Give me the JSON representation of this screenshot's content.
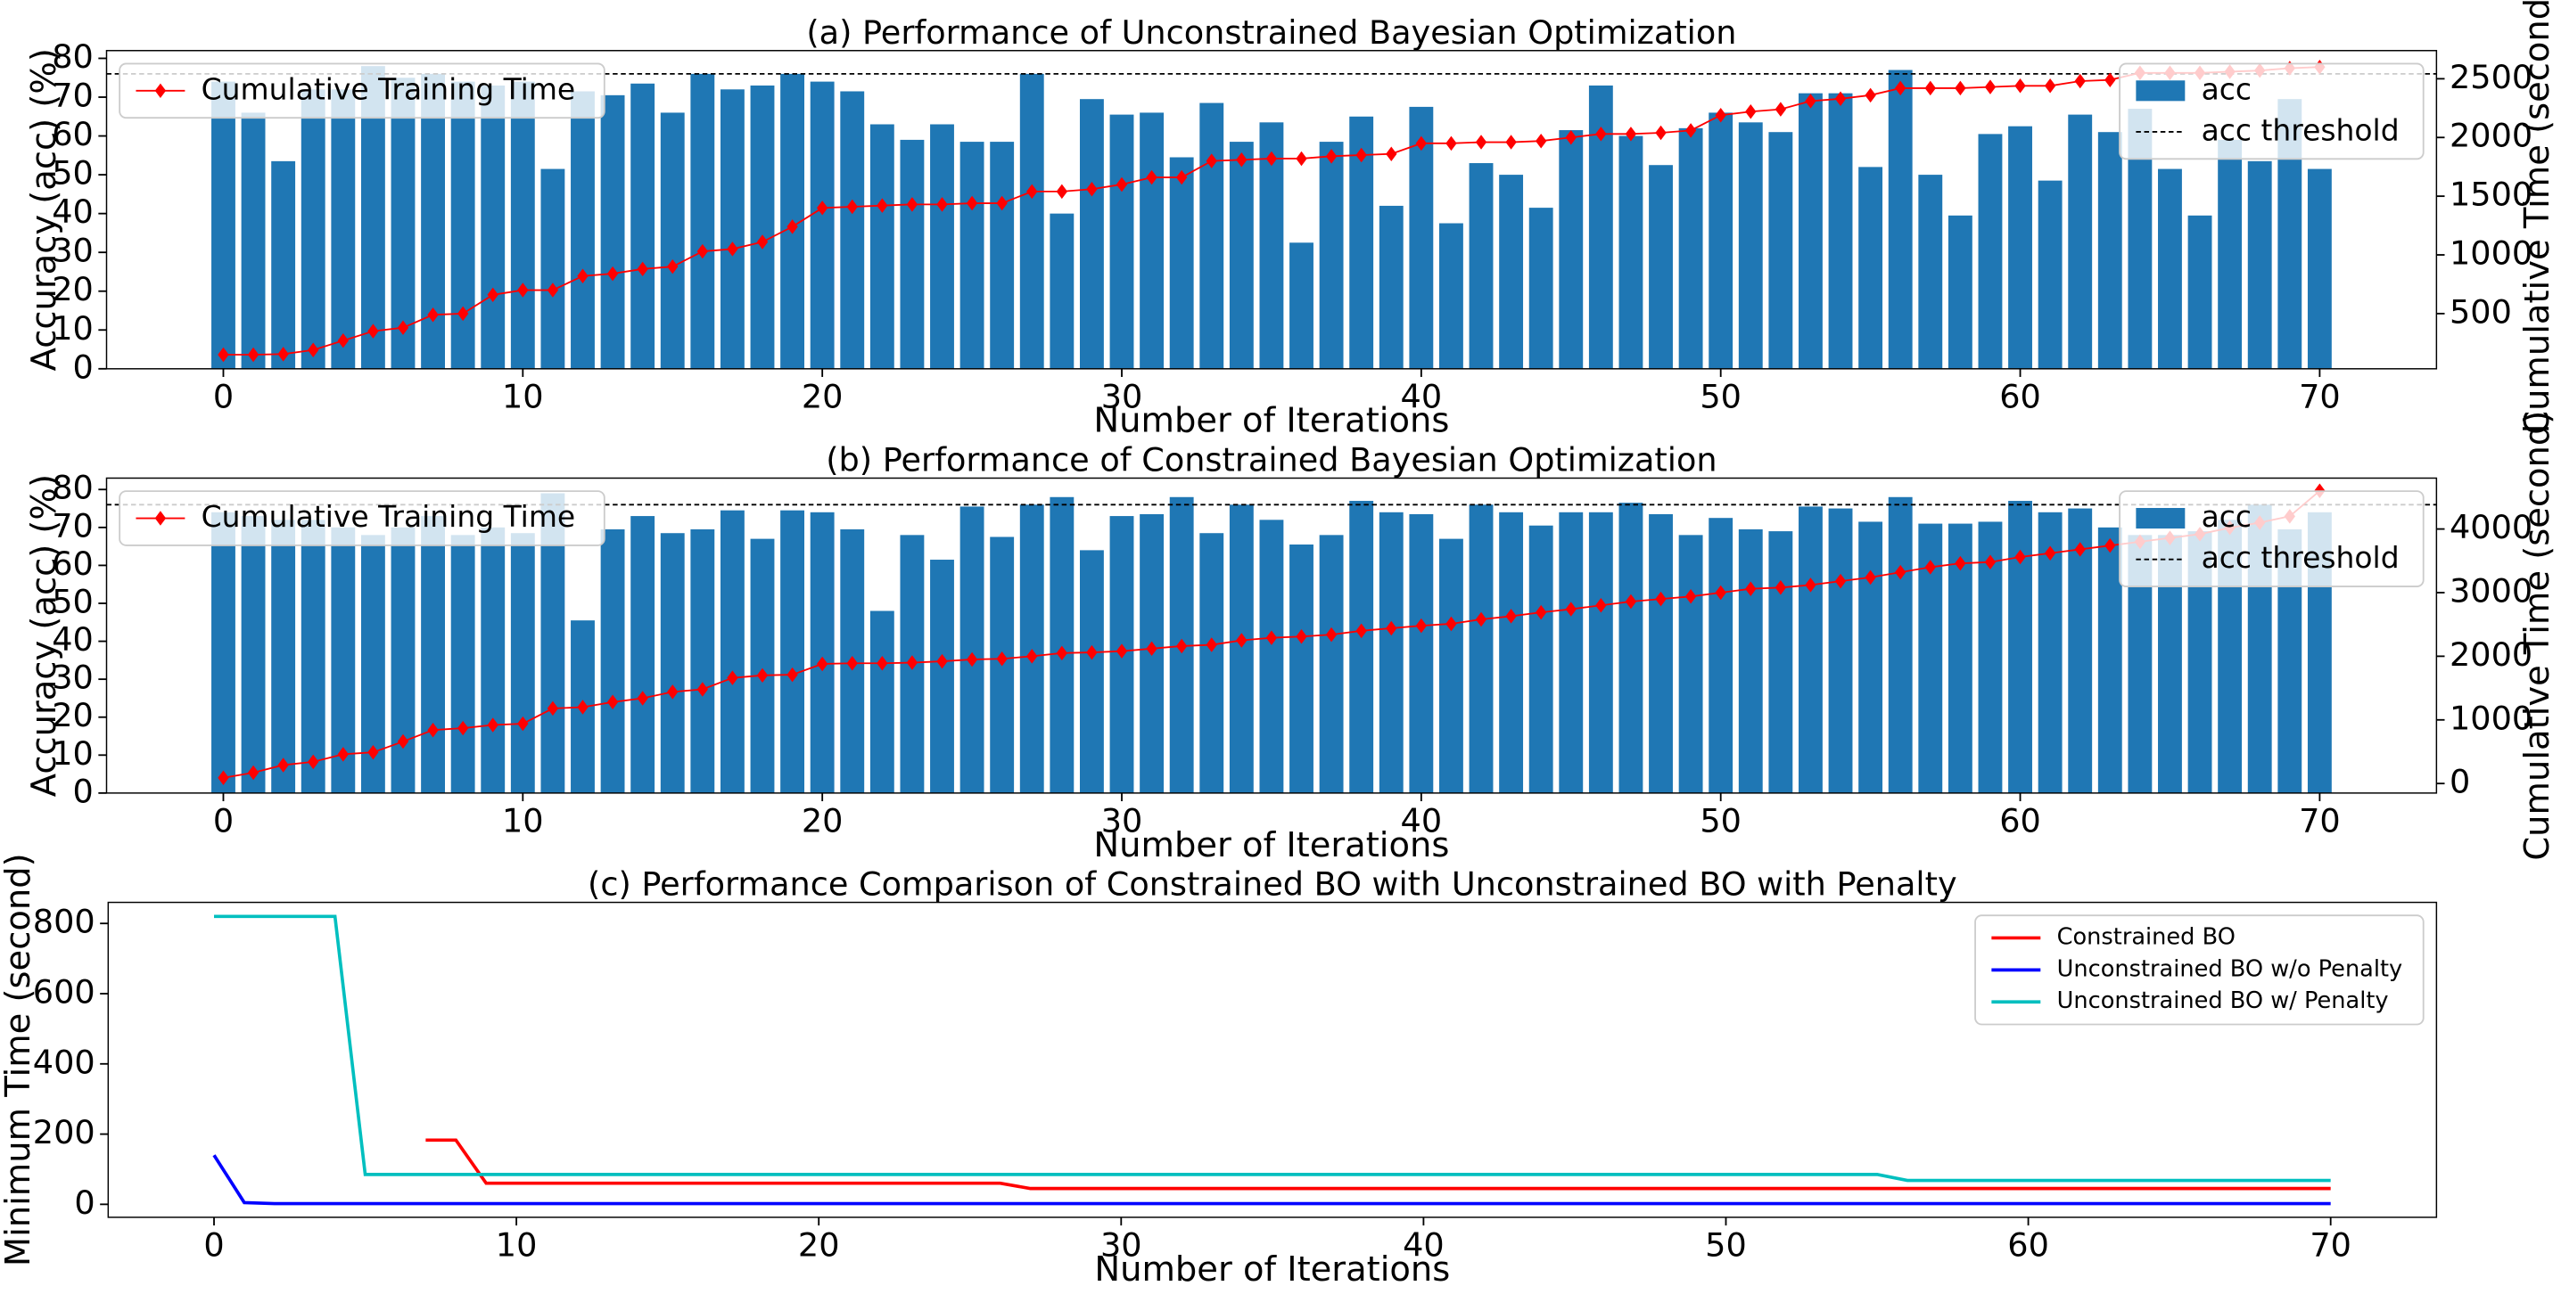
{
  "chart_data": [
    {
      "type": "bar",
      "title": "(a) Performance of Unconstrained Bayesian Optimization",
      "xlabel": "Number of Iterations",
      "ylabel": "Accuracy (acc) (%)",
      "y2label": "Cumulative Time (second)",
      "x": [
        0,
        1,
        2,
        3,
        4,
        5,
        6,
        7,
        8,
        9,
        10,
        11,
        12,
        13,
        14,
        15,
        16,
        17,
        18,
        19,
        20,
        21,
        22,
        23,
        24,
        25,
        26,
        27,
        28,
        29,
        30,
        31,
        32,
        33,
        34,
        35,
        36,
        37,
        38,
        39,
        40,
        41,
        42,
        43,
        44,
        45,
        46,
        47,
        48,
        49,
        50,
        51,
        52,
        53,
        54,
        55,
        56,
        57,
        58,
        59,
        60,
        61,
        62,
        63,
        64,
        65,
        66,
        67,
        68,
        69,
        70
      ],
      "series": [
        {
          "name": "acc",
          "color": "#1f77b4",
          "values": [
            74,
            66,
            53.5,
            72,
            72,
            78,
            75,
            76,
            74,
            73,
            74,
            51.5,
            71.5,
            70.5,
            73.5,
            66,
            76,
            72,
            73,
            76,
            74,
            71.5,
            63,
            59,
            63,
            58.5,
            58.5,
            76,
            40,
            69.5,
            65.5,
            66,
            54.5,
            68.5,
            58.5,
            63.5,
            32.5,
            58.5,
            65,
            42,
            67.5,
            37.5,
            53,
            50,
            41.5,
            61.5,
            73,
            60,
            52.5,
            62,
            66,
            63.5,
            61,
            71,
            71,
            52,
            77,
            50,
            39.5,
            60.5,
            62.5,
            48.5,
            65.5,
            61,
            67,
            51.5,
            39.5,
            59,
            53.5,
            69.5,
            51.5
          ]
        },
        {
          "name": "Cumulative Training Time",
          "type": "line",
          "axis": "y2",
          "marker": "diamond",
          "color": "#ff0000",
          "values": [
            150,
            150,
            155,
            190,
            270,
            350,
            380,
            490,
            500,
            660,
            700,
            700,
            820,
            840,
            880,
            900,
            1030,
            1050,
            1110,
            1240,
            1400,
            1410,
            1420,
            1430,
            1430,
            1440,
            1440,
            1540,
            1540,
            1560,
            1600,
            1660,
            1660,
            1800,
            1810,
            1820,
            1820,
            1840,
            1850,
            1860,
            1950,
            1950,
            1960,
            1960,
            1970,
            2000,
            2030,
            2030,
            2040,
            2060,
            2190,
            2220,
            2240,
            2310,
            2330,
            2360,
            2420,
            2420,
            2420,
            2430,
            2440,
            2440,
            2480,
            2490,
            2550,
            2550,
            2550,
            2560,
            2570,
            2590,
            2600
          ]
        }
      ],
      "threshold": {
        "name": "acc threshold",
        "value": 76,
        "color": "#000000"
      },
      "xlim": [
        -3.9,
        73.9
      ],
      "xticks": [
        0,
        10,
        20,
        30,
        40,
        50,
        60,
        70
      ],
      "ylim": [
        0,
        82
      ],
      "yticks": [
        0,
        10,
        20,
        30,
        40,
        50,
        60,
        70,
        80
      ],
      "y2lim": [
        30,
        2740
      ],
      "y2ticks": [
        500,
        1000,
        1500,
        2000,
        2500
      ],
      "legend_loc": "upper right",
      "y2_legend_loc": "upper left"
    },
    {
      "type": "bar",
      "title": "(b) Performance of Constrained Bayesian Optimization",
      "xlabel": "Number of Iterations",
      "ylabel": "Accuracy (acc) (%)",
      "y2label": "Cumulative Time (second)",
      "x": [
        0,
        1,
        2,
        3,
        4,
        5,
        6,
        7,
        8,
        9,
        10,
        11,
        12,
        13,
        14,
        15,
        16,
        17,
        18,
        19,
        20,
        21,
        22,
        23,
        24,
        25,
        26,
        27,
        28,
        29,
        30,
        31,
        32,
        33,
        34,
        35,
        36,
        37,
        38,
        39,
        40,
        41,
        42,
        43,
        44,
        45,
        46,
        47,
        48,
        49,
        50,
        51,
        52,
        53,
        54,
        55,
        56,
        57,
        58,
        59,
        60,
        61,
        62,
        63,
        64,
        65,
        66,
        67,
        68,
        69,
        70
      ],
      "series": [
        {
          "name": "acc",
          "color": "#1f77b4",
          "values": [
            74,
            73,
            72,
            72,
            70,
            68,
            70,
            73,
            68,
            70,
            68.5,
            79,
            45.5,
            69.5,
            73,
            68.5,
            69.5,
            74.5,
            67,
            74.5,
            74,
            69.5,
            48,
            68,
            61.5,
            75.5,
            67.5,
            76,
            78,
            64,
            73,
            73.5,
            78,
            68.5,
            76,
            72,
            65.5,
            68,
            77,
            74,
            73.5,
            67,
            76,
            74,
            70.5,
            74,
            74,
            76.5,
            73.5,
            68,
            72.5,
            69.5,
            69,
            75.5,
            75,
            71.5,
            78,
            71,
            71,
            71.5,
            77,
            74,
            75,
            70,
            68,
            68,
            69,
            72,
            76,
            69.5,
            74
          ]
        },
        {
          "name": "Cumulative Training Time",
          "type": "line",
          "axis": "y2",
          "marker": "diamond",
          "color": "#ff0000",
          "values": [
            90,
            170,
            290,
            340,
            460,
            490,
            660,
            840,
            870,
            920,
            940,
            1180,
            1200,
            1280,
            1340,
            1440,
            1480,
            1660,
            1700,
            1710,
            1880,
            1890,
            1890,
            1900,
            1920,
            1950,
            1960,
            2000,
            2050,
            2060,
            2080,
            2120,
            2160,
            2180,
            2250,
            2290,
            2310,
            2340,
            2400,
            2440,
            2480,
            2510,
            2580,
            2630,
            2690,
            2740,
            2800,
            2860,
            2900,
            2940,
            3000,
            3060,
            3080,
            3120,
            3180,
            3240,
            3320,
            3400,
            3460,
            3480,
            3560,
            3620,
            3680,
            3740,
            3800,
            3860,
            3920,
            4020,
            4100,
            4200,
            4600
          ]
        }
      ],
      "threshold": {
        "name": "acc threshold",
        "value": 76,
        "color": "#000000"
      },
      "xlim": [
        -3.9,
        73.9
      ],
      "xticks": [
        0,
        10,
        20,
        30,
        40,
        50,
        60,
        70
      ],
      "ylim": [
        0,
        83
      ],
      "yticks": [
        0,
        10,
        20,
        30,
        40,
        50,
        60,
        70,
        80
      ],
      "y2lim": [
        -150,
        4800
      ],
      "y2ticks": [
        0,
        1000,
        2000,
        3000,
        4000
      ],
      "legend_loc": "upper right",
      "y2_legend_loc": "upper left"
    },
    {
      "type": "line",
      "title": "(c) Performance Comparison of Constrained BO with Unconstrained BO with Penalty",
      "xlabel": "Number of Iterations",
      "ylabel": "Minimum Time (second)",
      "x": [
        0,
        1,
        2,
        3,
        4,
        5,
        6,
        7,
        8,
        9,
        10,
        11,
        12,
        13,
        14,
        15,
        16,
        17,
        18,
        19,
        20,
        21,
        22,
        23,
        24,
        25,
        26,
        27,
        28,
        29,
        30,
        31,
        32,
        33,
        34,
        35,
        36,
        37,
        38,
        39,
        40,
        41,
        42,
        43,
        44,
        45,
        46,
        47,
        48,
        49,
        50,
        51,
        52,
        53,
        54,
        55,
        56,
        57,
        58,
        59,
        60,
        61,
        62,
        63,
        64,
        65,
        66,
        67,
        68,
        69,
        70
      ],
      "series": [
        {
          "name": "Constrained BO",
          "color": "#ff0000",
          "values": [
            null,
            null,
            null,
            null,
            null,
            null,
            null,
            183,
            183,
            60,
            60,
            60,
            60,
            60,
            60,
            60,
            60,
            60,
            60,
            60,
            60,
            60,
            60,
            60,
            60,
            60,
            60,
            45,
            45,
            45,
            45,
            45,
            45,
            45,
            45,
            45,
            45,
            45,
            45,
            45,
            45,
            45,
            45,
            45,
            45,
            45,
            45,
            45,
            45,
            45,
            45,
            45,
            45,
            45,
            45,
            45,
            45,
            45,
            45,
            45,
            45,
            45,
            45,
            45,
            45,
            45,
            45,
            45,
            45,
            45,
            45
          ]
        },
        {
          "name": "Unconstrained BO w/o Penalty",
          "color": "#0000ff",
          "values": [
            140,
            5,
            2,
            2,
            2,
            2,
            2,
            2,
            2,
            2,
            2,
            2,
            2,
            2,
            2,
            2,
            2,
            2,
            2,
            2,
            2,
            2,
            2,
            2,
            2,
            2,
            2,
            2,
            2,
            2,
            2,
            2,
            2,
            2,
            2,
            2,
            2,
            2,
            2,
            2,
            2,
            2,
            2,
            2,
            2,
            2,
            2,
            2,
            2,
            2,
            2,
            2,
            2,
            2,
            2,
            2,
            2,
            2,
            2,
            2,
            2,
            2,
            2,
            2,
            2,
            2,
            2,
            2,
            2,
            2,
            2
          ]
        },
        {
          "name": "Unconstrained BO w/ Penalty",
          "color": "#00bfbf",
          "values": [
            820,
            820,
            820,
            820,
            820,
            85,
            85,
            85,
            85,
            85,
            85,
            85,
            85,
            85,
            85,
            85,
            85,
            85,
            85,
            85,
            85,
            85,
            85,
            85,
            85,
            85,
            85,
            85,
            85,
            85,
            85,
            85,
            85,
            85,
            85,
            85,
            85,
            85,
            85,
            85,
            85,
            85,
            85,
            85,
            85,
            85,
            85,
            85,
            85,
            85,
            85,
            85,
            85,
            85,
            85,
            85,
            68,
            68,
            68,
            68,
            68,
            68,
            68,
            68,
            68,
            68,
            68,
            68,
            68,
            68,
            68
          ]
        }
      ],
      "xlim": [
        -3.5,
        73.5
      ],
      "xticks": [
        0,
        10,
        20,
        30,
        40,
        50,
        60,
        70
      ],
      "ylim": [
        -37,
        860
      ],
      "yticks": [
        0,
        200,
        400,
        600,
        800
      ],
      "legend_loc": "upper right"
    }
  ]
}
